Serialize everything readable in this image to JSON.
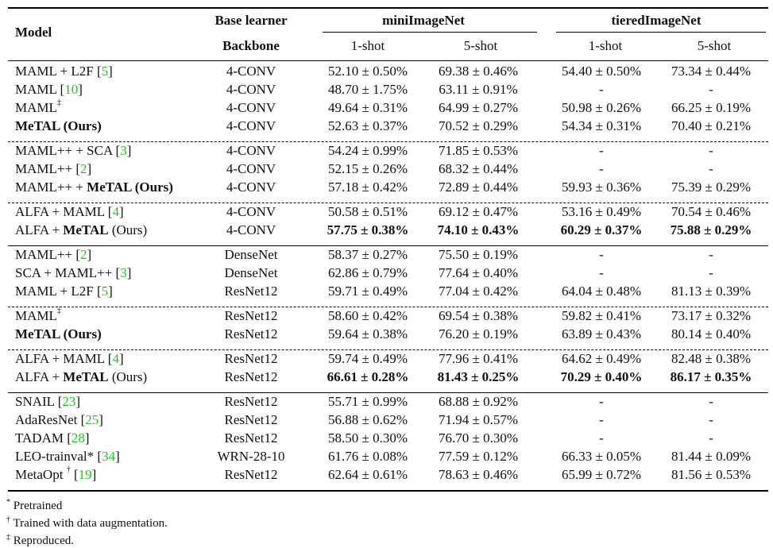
{
  "header": {
    "model": "Model",
    "base_learner": "Base learner",
    "backbone": "Backbone",
    "datasets": [
      "miniImageNet",
      "tieredImageNet"
    ],
    "shots": [
      "1-shot",
      "5-shot",
      "1-shot",
      "5-shot"
    ]
  },
  "groups": [
    {
      "separator_after": "dashed",
      "rows": [
        {
          "model": {
            "pre": "MAML + L2F ",
            "bold": "",
            "post": "",
            "sup": "",
            "ref": "5"
          },
          "backbone": "4-CONV",
          "vals": [
            {
              "v": "52.10 ± 0.50%",
              "b": false
            },
            {
              "v": "69.38 ± 0.46%",
              "b": false
            },
            {
              "v": "54.40 ± 0.50%",
              "b": false
            },
            {
              "v": "73.34 ± 0.44%",
              "b": false
            }
          ]
        },
        {
          "model": {
            "pre": "MAML ",
            "bold": "",
            "post": "",
            "sup": "",
            "ref": "10"
          },
          "backbone": "4-CONV",
          "vals": [
            {
              "v": "48.70 ± 1.75%",
              "b": false
            },
            {
              "v": "63.11 ± 0.91%",
              "b": false
            },
            {
              "v": "-",
              "b": false
            },
            {
              "v": "-",
              "b": false
            }
          ]
        },
        {
          "model": {
            "pre": "MAML",
            "bold": "",
            "post": "",
            "sup": "‡",
            "ref": ""
          },
          "backbone": "4-CONV",
          "vals": [
            {
              "v": "49.64 ± 0.31%",
              "b": false
            },
            {
              "v": "64.99 ± 0.27%",
              "b": false
            },
            {
              "v": "50.98 ± 0.26%",
              "b": false
            },
            {
              "v": "66.25 ± 0.19%",
              "b": false
            }
          ]
        },
        {
          "model": {
            "pre": "",
            "bold": "MeTAL (Ours)",
            "post": "",
            "sup": "",
            "ref": ""
          },
          "backbone": "4-CONV",
          "vals": [
            {
              "v": "52.63 ± 0.37%",
              "b": false
            },
            {
              "v": "70.52 ± 0.29%",
              "b": false
            },
            {
              "v": "54.34 ± 0.31%",
              "b": false
            },
            {
              "v": "70.40 ± 0.21%",
              "b": false
            }
          ]
        }
      ]
    },
    {
      "separator_after": "dashed",
      "rows": [
        {
          "model": {
            "pre": "MAML++ + SCA ",
            "bold": "",
            "post": "",
            "sup": "",
            "ref": "3"
          },
          "backbone": "4-CONV",
          "vals": [
            {
              "v": "54.24 ± 0.99%",
              "b": false
            },
            {
              "v": "71.85 ± 0.53%",
              "b": false
            },
            {
              "v": "-",
              "b": false
            },
            {
              "v": "-",
              "b": false
            }
          ]
        },
        {
          "model": {
            "pre": "MAML++ ",
            "bold": "",
            "post": "",
            "sup": "",
            "ref": "2"
          },
          "backbone": "4-CONV",
          "vals": [
            {
              "v": "52.15 ± 0.26%",
              "b": false
            },
            {
              "v": "68.32 ± 0.44%",
              "b": false
            },
            {
              "v": "-",
              "b": false
            },
            {
              "v": "-",
              "b": false
            }
          ]
        },
        {
          "model": {
            "pre": "MAML++ + ",
            "bold": "MeTAL (Ours)",
            "post": "",
            "sup": "",
            "ref": ""
          },
          "backbone": "4-CONV",
          "vals": [
            {
              "v": "57.18 ± 0.42%",
              "b": false
            },
            {
              "v": "72.89 ± 0.44%",
              "b": false
            },
            {
              "v": "59.93 ± 0.36%",
              "b": false
            },
            {
              "v": "75.39 ± 0.29%",
              "b": false
            }
          ]
        }
      ]
    },
    {
      "separator_after": "solid",
      "rows": [
        {
          "model": {
            "pre": "ALFA + MAML  ",
            "bold": "",
            "post": "",
            "sup": "",
            "ref": "4"
          },
          "backbone": "4-CONV",
          "vals": [
            {
              "v": "50.58 ± 0.51%",
              "b": false
            },
            {
              "v": "69.12 ± 0.47%",
              "b": false
            },
            {
              "v": "53.16 ± 0.49%",
              "b": false
            },
            {
              "v": "70.54 ± 0.46%",
              "b": false
            }
          ]
        },
        {
          "model": {
            "pre": "ALFA + ",
            "bold": "MeTAL",
            "post": " (Ours)",
            "sup": "",
            "ref": ""
          },
          "backbone": "4-CONV",
          "vals": [
            {
              "v": "57.75 ± 0.38%",
              "b": true
            },
            {
              "v": "74.10 ± 0.43%",
              "b": true
            },
            {
              "v": "60.29 ± 0.37%",
              "b": true
            },
            {
              "v": "75.88 ± 0.29%",
              "b": true
            }
          ]
        }
      ]
    },
    {
      "separator_after": "dashed",
      "rows": [
        {
          "model": {
            "pre": "MAML++ ",
            "bold": "",
            "post": "",
            "sup": "",
            "ref": "2"
          },
          "backbone": "DenseNet",
          "vals": [
            {
              "v": "58.37 ± 0.27%",
              "b": false
            },
            {
              "v": "75.50 ± 0.19%",
              "b": false
            },
            {
              "v": "-",
              "b": false
            },
            {
              "v": "-",
              "b": false
            }
          ]
        },
        {
          "model": {
            "pre": "SCA + MAML++ ",
            "bold": "",
            "post": "",
            "sup": "",
            "ref": "3"
          },
          "backbone": "DenseNet",
          "vals": [
            {
              "v": "62.86 ± 0.79%",
              "b": false
            },
            {
              "v": "77.64 ± 0.40%",
              "b": false
            },
            {
              "v": "-",
              "b": false
            },
            {
              "v": "-",
              "b": false
            }
          ]
        },
        {
          "model": {
            "pre": "MAML + L2F ",
            "bold": "",
            "post": "",
            "sup": "",
            "ref": "5"
          },
          "backbone": "ResNet12",
          "vals": [
            {
              "v": "59.71 ± 0.49%",
              "b": false
            },
            {
              "v": "77.04 ± 0.42%",
              "b": false
            },
            {
              "v": "64.04 ± 0.48%",
              "b": false
            },
            {
              "v": "81.13 ± 0.39%",
              "b": false
            }
          ]
        }
      ]
    },
    {
      "separator_after": "dashed",
      "rows": [
        {
          "model": {
            "pre": "MAML",
            "bold": "",
            "post": "",
            "sup": "‡",
            "ref": ""
          },
          "backbone": "ResNet12",
          "vals": [
            {
              "v": "58.60 ± 0.42%",
              "b": false
            },
            {
              "v": "69.54 ± 0.38%",
              "b": false
            },
            {
              "v": "59.82 ± 0.41%",
              "b": false
            },
            {
              "v": "73.17 ± 0.32%",
              "b": false
            }
          ]
        },
        {
          "model": {
            "pre": "",
            "bold": "MeTAL (Ours)",
            "post": "",
            "sup": "",
            "ref": ""
          },
          "backbone": "ResNet12",
          "vals": [
            {
              "v": "59.64 ± 0.38%",
              "b": false
            },
            {
              "v": "76.20 ± 0.19%",
              "b": false
            },
            {
              "v": "63.89 ± 0.43%",
              "b": false
            },
            {
              "v": "80.14 ± 0.40%",
              "b": false
            }
          ]
        }
      ]
    },
    {
      "separator_after": "solid",
      "rows": [
        {
          "model": {
            "pre": "ALFA + MAML  ",
            "bold": "",
            "post": "",
            "sup": "",
            "ref": "4"
          },
          "backbone": "ResNet12",
          "vals": [
            {
              "v": "59.74 ± 0.49%",
              "b": false
            },
            {
              "v": "77.96 ± 0.41%",
              "b": false
            },
            {
              "v": "64.62 ± 0.49%",
              "b": false
            },
            {
              "v": "82.48 ± 0.38%",
              "b": false
            }
          ]
        },
        {
          "model": {
            "pre": "ALFA + ",
            "bold": "MeTAL",
            "post": " (Ours)",
            "sup": "",
            "ref": ""
          },
          "backbone": "ResNet12",
          "vals": [
            {
              "v": "66.61 ± 0.28%",
              "b": true
            },
            {
              "v": "81.43 ± 0.25%",
              "b": true
            },
            {
              "v": "70.29 ± 0.40%",
              "b": true
            },
            {
              "v": "86.17 ± 0.35%",
              "b": true
            }
          ]
        }
      ]
    },
    {
      "separator_after": "thick",
      "rows": [
        {
          "model": {
            "pre": "SNAIL ",
            "bold": "",
            "post": "",
            "sup": "",
            "ref": "23"
          },
          "backbone": "ResNet12",
          "vals": [
            {
              "v": "55.71 ± 0.99%",
              "b": false
            },
            {
              "v": "68.88 ± 0.92%",
              "b": false
            },
            {
              "v": "-",
              "b": false
            },
            {
              "v": "-",
              "b": false
            }
          ]
        },
        {
          "model": {
            "pre": "AdaResNet ",
            "bold": "",
            "post": "",
            "sup": "",
            "ref": "25"
          },
          "backbone": "ResNet12",
          "vals": [
            {
              "v": "56.88 ± 0.62%",
              "b": false
            },
            {
              "v": "71.94 ± 0.57%",
              "b": false
            },
            {
              "v": "-",
              "b": false
            },
            {
              "v": "-",
              "b": false
            }
          ]
        },
        {
          "model": {
            "pre": "TADAM ",
            "bold": "",
            "post": "",
            "sup": "",
            "ref": "28"
          },
          "backbone": "ResNet12",
          "vals": [
            {
              "v": "58.50 ± 0.30%",
              "b": false
            },
            {
              "v": "76.70 ± 0.30%",
              "b": false
            },
            {
              "v": "-",
              "b": false
            },
            {
              "v": "-",
              "b": false
            }
          ]
        },
        {
          "model": {
            "pre": "LEO-trainval* ",
            "bold": "",
            "post": "",
            "sup": "",
            "ref": "34"
          },
          "backbone": "WRN-28-10",
          "vals": [
            {
              "v": "61.76 ± 0.08%",
              "b": false
            },
            {
              "v": "77.59 ± 0.12%",
              "b": false
            },
            {
              "v": "66.33 ± 0.05%",
              "b": false
            },
            {
              "v": "81.44 ± 0.09%",
              "b": false
            }
          ]
        },
        {
          "model": {
            "pre": "MetaOpt ",
            "bold": "",
            "post": "",
            "sup": "†",
            "ref": "19"
          },
          "backbone": "ResNet12",
          "vals": [
            {
              "v": "62.64 ± 0.61%",
              "b": false
            },
            {
              "v": "78.63 ± 0.46%",
              "b": false
            },
            {
              "v": "65.99 ± 0.72%",
              "b": false
            },
            {
              "v": "81.56 ± 0.53%",
              "b": false
            }
          ]
        }
      ]
    }
  ],
  "footnotes": [
    {
      "mark": "*",
      "text": " Pretrained"
    },
    {
      "mark": "†",
      "text": " Trained with data augmentation."
    },
    {
      "mark": "‡",
      "text": " Reproduced."
    }
  ]
}
